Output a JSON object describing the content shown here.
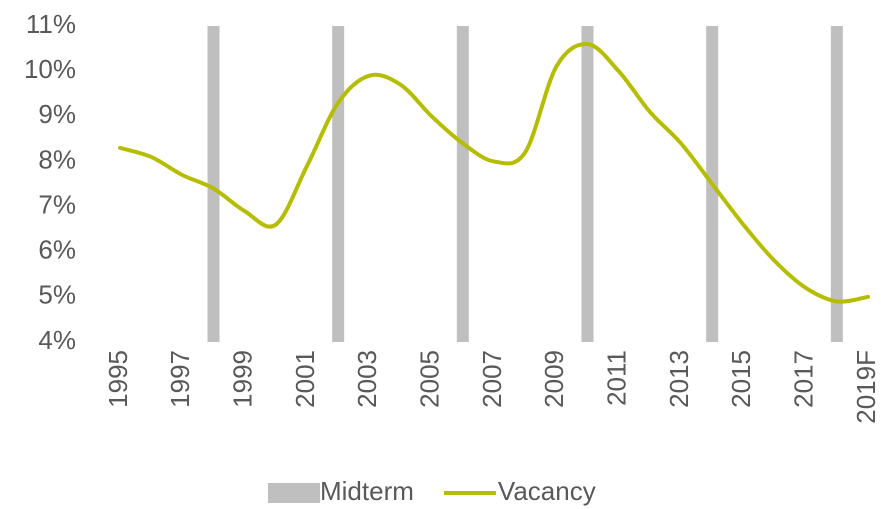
{
  "chart_data": {
    "type": "combo",
    "categories": [
      "1995",
      null,
      "1997",
      null,
      "1999",
      null,
      "2001",
      null,
      "2003",
      null,
      "2005",
      null,
      "2007",
      null,
      "2009",
      null,
      "2011",
      null,
      "2013",
      null,
      "2015",
      null,
      "2017",
      null,
      "2019F"
    ],
    "series": [
      {
        "name": "Midterm",
        "type": "bar",
        "color": "#bfbfbf",
        "values": [
          null,
          null,
          null,
          11,
          null,
          null,
          null,
          11,
          null,
          null,
          null,
          11,
          null,
          null,
          null,
          11,
          null,
          null,
          null,
          11,
          null,
          null,
          null,
          11,
          null
        ]
      },
      {
        "name": "Vacancy",
        "type": "line",
        "color": "#b5bd00",
        "values": [
          8.3,
          8.1,
          7.7,
          7.4,
          6.9,
          6.6,
          7.9,
          9.3,
          9.9,
          9.7,
          9.0,
          8.4,
          8.0,
          8.2,
          10.1,
          10.6,
          10.0,
          9.1,
          8.4,
          7.5,
          6.6,
          5.8,
          5.2,
          4.9,
          5.0
        ]
      }
    ],
    "ylim": [
      4,
      11
    ],
    "yticks": [
      {
        "value": 4,
        "label": "4%"
      },
      {
        "value": 5,
        "label": "5%"
      },
      {
        "value": 6,
        "label": "6%"
      },
      {
        "value": 7,
        "label": "7%"
      },
      {
        "value": 8,
        "label": "8%"
      },
      {
        "value": 9,
        "label": "9%"
      },
      {
        "value": 10,
        "label": "10%"
      },
      {
        "value": 11,
        "label": "11%"
      }
    ],
    "grid": false,
    "legend": "bottom"
  }
}
